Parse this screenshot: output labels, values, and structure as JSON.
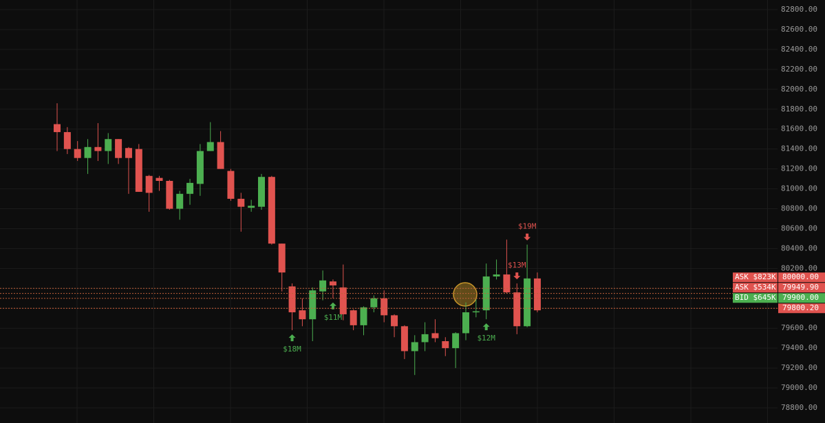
{
  "chart_data": {
    "type": "candlestick",
    "ylim": [
      78648,
      82897
    ],
    "yticks": [
      {
        "value": 82800,
        "label": "82800.00"
      },
      {
        "value": 82600,
        "label": "82600.00"
      },
      {
        "value": 82400,
        "label": "82400.00"
      },
      {
        "value": 82200,
        "label": "82200.00"
      },
      {
        "value": 82000,
        "label": "82000.00"
      },
      {
        "value": 81800,
        "label": "81800.00"
      },
      {
        "value": 81600,
        "label": "81600.00"
      },
      {
        "value": 81400,
        "label": "81400.00"
      },
      {
        "value": 81200,
        "label": "81200.00"
      },
      {
        "value": 81000,
        "label": "81000.00"
      },
      {
        "value": 80800,
        "label": "80800.00"
      },
      {
        "value": 80600,
        "label": "80600.00"
      },
      {
        "value": 80400,
        "label": "80400.00"
      },
      {
        "value": 80200,
        "label": "80200.00"
      },
      {
        "value": 80000,
        "label": "80000.00"
      },
      {
        "value": 79800,
        "label": "79800.00"
      },
      {
        "value": 79600,
        "label": "79600.00"
      },
      {
        "value": 79400,
        "label": "79400.00"
      },
      {
        "value": 79200,
        "label": "79200.00"
      },
      {
        "value": 79000,
        "label": "79000.00"
      },
      {
        "value": 78800,
        "label": "78800.00"
      }
    ],
    "grid": true,
    "up_color": "#4caf50",
    "down_color": "#e0534f",
    "candles": [
      {
        "o": 81650,
        "h": 81860,
        "l": 81380,
        "c": 81570
      },
      {
        "o": 81570,
        "h": 81620,
        "l": 81350,
        "c": 81400
      },
      {
        "o": 81400,
        "h": 81480,
        "l": 81280,
        "c": 81310
      },
      {
        "o": 81310,
        "h": 81500,
        "l": 81150,
        "c": 81420
      },
      {
        "o": 81420,
        "h": 81660,
        "l": 81280,
        "c": 81380
      },
      {
        "o": 81380,
        "h": 81560,
        "l": 81250,
        "c": 81500
      },
      {
        "o": 81500,
        "h": 81500,
        "l": 81250,
        "c": 81310
      },
      {
        "o": 81410,
        "h": 81420,
        "l": 80950,
        "c": 81310
      },
      {
        "o": 81400,
        "h": 81450,
        "l": 80970,
        "c": 80970
      },
      {
        "o": 81130,
        "h": 81140,
        "l": 80770,
        "c": 80960
      },
      {
        "o": 81110,
        "h": 81130,
        "l": 80980,
        "c": 81080
      },
      {
        "o": 81080,
        "h": 81090,
        "l": 80790,
        "c": 80800
      },
      {
        "o": 80800,
        "h": 80980,
        "l": 80690,
        "c": 80950
      },
      {
        "o": 80950,
        "h": 81100,
        "l": 80840,
        "c": 81060
      },
      {
        "o": 81050,
        "h": 81450,
        "l": 80930,
        "c": 81380
      },
      {
        "o": 81380,
        "h": 81670,
        "l": 81380,
        "c": 81470
      },
      {
        "o": 81470,
        "h": 81580,
        "l": 81200,
        "c": 81200
      },
      {
        "o": 81180,
        "h": 81200,
        "l": 80880,
        "c": 80900
      },
      {
        "o": 80900,
        "h": 80960,
        "l": 80570,
        "c": 80820
      },
      {
        "o": 80810,
        "h": 80890,
        "l": 80770,
        "c": 80830
      },
      {
        "o": 80820,
        "h": 81150,
        "l": 80790,
        "c": 81120
      },
      {
        "o": 81120,
        "h": 81130,
        "l": 80440,
        "c": 80450
      },
      {
        "o": 80450,
        "h": 80450,
        "l": 79970,
        "c": 80160
      },
      {
        "o": 80020,
        "h": 80050,
        "l": 79580,
        "c": 79760,
        "marker": "$18M",
        "marker_side": "buy"
      },
      {
        "o": 79780,
        "h": 79900,
        "l": 79620,
        "c": 79690
      },
      {
        "o": 79690,
        "h": 80010,
        "l": 79470,
        "c": 79980
      },
      {
        "o": 79970,
        "h": 80180,
        "l": 79880,
        "c": 80080
      },
      {
        "o": 80070,
        "h": 80090,
        "l": 79900,
        "c": 80030,
        "marker": "$11M",
        "marker_side": "buy"
      },
      {
        "o": 80010,
        "h": 80240,
        "l": 79680,
        "c": 79740
      },
      {
        "o": 79780,
        "h": 79790,
        "l": 79580,
        "c": 79630
      },
      {
        "o": 79630,
        "h": 79820,
        "l": 79530,
        "c": 79810
      },
      {
        "o": 79810,
        "h": 79930,
        "l": 79760,
        "c": 79900
      },
      {
        "o": 79900,
        "h": 79980,
        "l": 79660,
        "c": 79730
      },
      {
        "o": 79730,
        "h": 79740,
        "l": 79510,
        "c": 79620
      },
      {
        "o": 79620,
        "h": 79630,
        "l": 79290,
        "c": 79370
      },
      {
        "o": 79370,
        "h": 79530,
        "l": 79130,
        "c": 79460
      },
      {
        "o": 79460,
        "h": 79660,
        "l": 79370,
        "c": 79540
      },
      {
        "o": 79550,
        "h": 79690,
        "l": 79460,
        "c": 79500
      },
      {
        "o": 79470,
        "h": 79510,
        "l": 79320,
        "c": 79400
      },
      {
        "o": 79400,
        "h": 79560,
        "l": 79200,
        "c": 79550
      },
      {
        "o": 79550,
        "h": 79860,
        "l": 79480,
        "c": 79760
      },
      {
        "o": 79760,
        "h": 79890,
        "l": 79710,
        "c": 79770
      },
      {
        "o": 79780,
        "h": 80250,
        "l": 79690,
        "c": 80120,
        "marker": "$12M",
        "marker_side": "buy"
      },
      {
        "o": 80120,
        "h": 80290,
        "l": 80090,
        "c": 80140
      },
      {
        "o": 80140,
        "h": 80490,
        "l": 79950,
        "c": 79960
      },
      {
        "o": 79960,
        "h": 80050,
        "l": 79540,
        "c": 79620,
        "marker": "$13M",
        "marker_side": "sell"
      },
      {
        "o": 79620,
        "h": 80440,
        "l": 79610,
        "c": 80100,
        "marker": "$19M",
        "marker_side": "sell"
      },
      {
        "o": 80100,
        "h": 80160,
        "l": 79760,
        "c": 79780
      }
    ],
    "orders": [
      {
        "side": "ASK",
        "size": "$823K",
        "price": 80000,
        "price_label": "80000.00"
      },
      {
        "side": "ASK",
        "size": "$534K",
        "price": 79949.9,
        "price_label": "79949.90"
      },
      {
        "side": "BID",
        "size": "$645K",
        "price": 79900,
        "price_label": "79900.00"
      }
    ],
    "last_price": {
      "value": 79800.2,
      "label": "79800.20"
    }
  }
}
